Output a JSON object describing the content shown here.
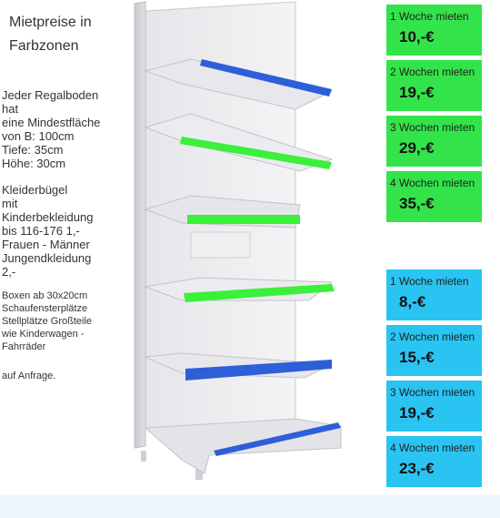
{
  "left_panel": {
    "title_line1": "Mietpreise in",
    "title_line2": "Farbzonen",
    "shelf_lines": [
      "Jeder Regalboden",
      "hat",
      "eine Mindestfläche",
      "von B: 100cm",
      "Tiefe: 35cm",
      "Höhe: 30cm"
    ],
    "clothing_lines": [
      "Kleiderbügel",
      "mit",
      "Kinderbekleidung",
      "bis 116-176 1,-",
      "Frauen - Männer",
      "Jungendkleidung",
      "2,-"
    ],
    "boxes_lines": [
      "Boxen ab 30x20cm",
      "Schaufensterplätze",
      "Stellplätze Großteile",
      "wie Kinderwagen -",
      "Fahrräder"
    ],
    "request": "auf Anfrage."
  },
  "price_boxes": [
    {
      "label": "1 Woche mieten",
      "price": "10,-€",
      "color": "#33e34a"
    },
    {
      "label": "2 Wochen mieten",
      "price": "19,-€",
      "color": "#33e34a"
    },
    {
      "label": "3 Wochen mieten",
      "price": "29,-€",
      "color": "#33e34a"
    },
    {
      "label": "4 Wochen mieten",
      "price": "35,-€",
      "color": "#33e34a"
    },
    {
      "label": "1 Woche mieten",
      "price": "8,-€",
      "color": "#29c4f2"
    },
    {
      "label": "2 Wochen mieten",
      "price": "15,-€",
      "color": "#29c4f2"
    },
    {
      "label": "3 Wochen mieten",
      "price": "19,-€",
      "color": "#29c4f2"
    },
    {
      "label": "4 Wochen mieten",
      "price": "23,-€",
      "color": "#29c4f2"
    }
  ],
  "colors": {
    "green": "#33e34a",
    "blue": "#29c4f2",
    "shelf_blue": "#2e5fd8",
    "shelf_green": "#3af03a"
  }
}
